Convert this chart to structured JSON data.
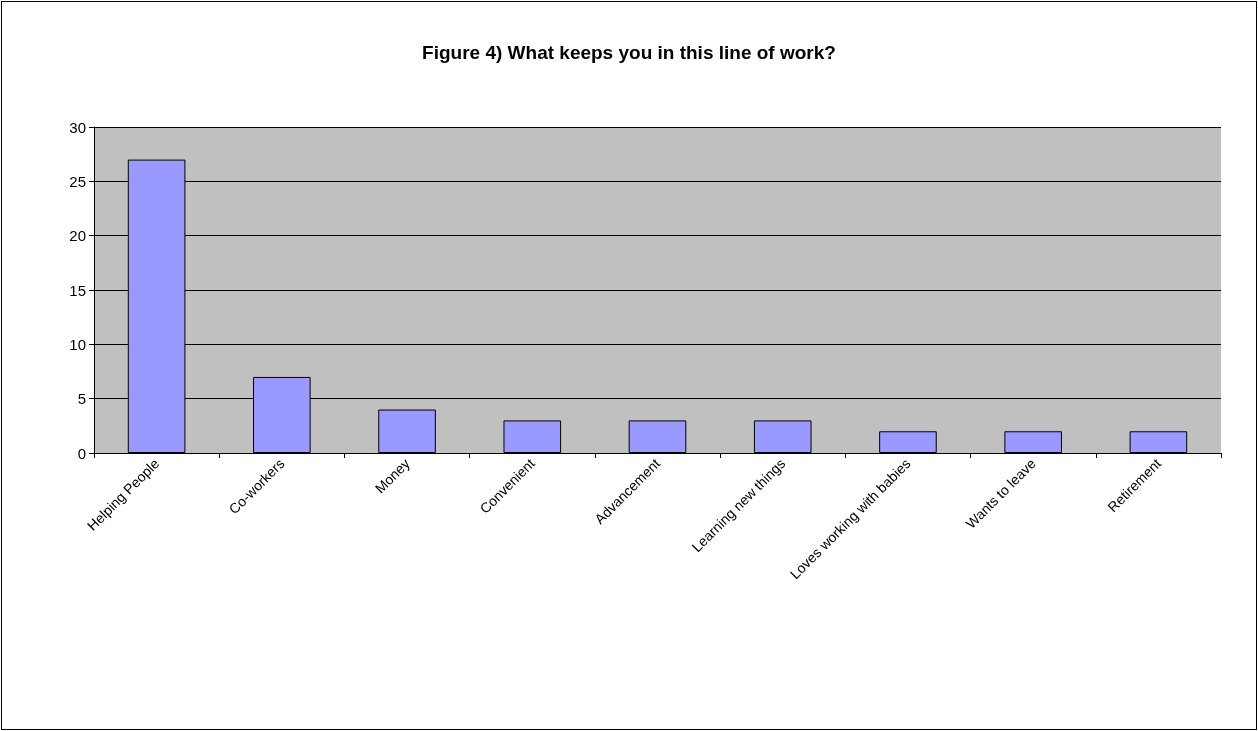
{
  "chart_data": {
    "type": "bar",
    "title": "Figure 4) What keeps you in this line of work?",
    "categories": [
      "Helping People",
      "Co-workers",
      "Money",
      "Convenient",
      "Advancement",
      "Learning new things",
      "Loves working with babies",
      "Wants to leave",
      "Retirement"
    ],
    "values": [
      27,
      7,
      4,
      3,
      3,
      3,
      2,
      2,
      2
    ],
    "color": "#9999ff",
    "ylim": [
      0,
      30
    ],
    "yticks": [
      0,
      5,
      10,
      15,
      20,
      25,
      30
    ],
    "grid": "y"
  }
}
